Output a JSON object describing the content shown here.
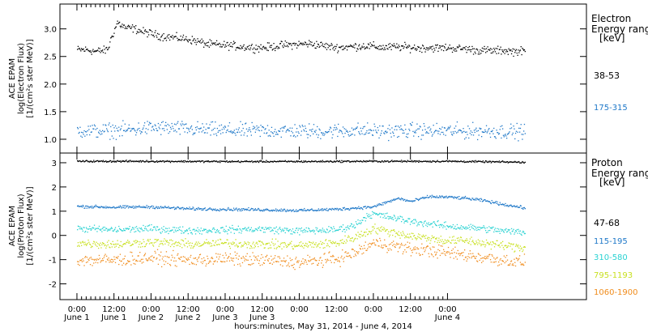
{
  "chart_data": [
    {
      "type": "scatter",
      "ylabel": [
        "ACE EPAM",
        "log(Electron Flux)",
        "[1/(cm²s ster MeV)]"
      ],
      "ylim": [
        0.75,
        3.45
      ],
      "yticks": [
        1.0,
        1.5,
        2.0,
        2.5,
        3.0
      ],
      "ytick_labels": [
        "1.0",
        "1.5",
        "2.0",
        "2.5",
        "3.0"
      ],
      "legend_title": [
        "Electron",
        "Energy ranges",
        "[keV]"
      ],
      "series": [
        {
          "name": "38-53",
          "color": "#000000",
          "x": [
            0,
            3,
            6,
            9,
            10,
            11,
            12,
            13,
            14,
            16,
            18,
            21,
            24,
            27,
            30,
            33,
            36,
            39,
            42,
            45,
            48,
            51,
            54,
            57,
            60,
            63,
            66,
            69,
            72,
            75,
            78,
            81,
            84,
            87,
            90,
            93,
            96,
            99,
            102,
            105,
            108,
            111,
            114,
            117,
            120,
            123,
            126,
            129,
            132,
            135,
            138,
            141,
            144,
            145
          ],
          "y": [
            2.63,
            2.63,
            2.6,
            2.62,
            2.65,
            2.85,
            2.98,
            3.13,
            3.08,
            3.02,
            3.02,
            2.96,
            2.92,
            2.88,
            2.86,
            2.84,
            2.82,
            2.78,
            2.73,
            2.72,
            2.71,
            2.7,
            2.68,
            2.67,
            2.67,
            2.68,
            2.71,
            2.72,
            2.73,
            2.74,
            2.72,
            2.69,
            2.67,
            2.68,
            2.69,
            2.7,
            2.69,
            2.67,
            2.68,
            2.68,
            2.67,
            2.66,
            2.67,
            2.66,
            2.67,
            2.65,
            2.65,
            2.62,
            2.62,
            2.61,
            2.62,
            2.6,
            2.61,
            2.6
          ],
          "spread": 0.06
        },
        {
          "name": "175-315",
          "color": "#1f78c8",
          "x": [
            0,
            6,
            12,
            18,
            24,
            30,
            36,
            42,
            48,
            54,
            60,
            66,
            72,
            78,
            84,
            90,
            96,
            102,
            108,
            114,
            120,
            126,
            132,
            138,
            145
          ],
          "y": [
            1.17,
            1.16,
            1.17,
            1.18,
            1.22,
            1.21,
            1.19,
            1.18,
            1.17,
            1.16,
            1.17,
            1.16,
            1.16,
            1.15,
            1.16,
            1.17,
            1.16,
            1.15,
            1.17,
            1.16,
            1.16,
            1.15,
            1.16,
            1.15,
            1.15
          ],
          "spread": 0.11
        }
      ]
    },
    {
      "type": "scatter",
      "ylabel": [
        "ACE EPAM",
        "log(Proton Flux)",
        "[1/(cm²s ster MeV)]"
      ],
      "ylim": [
        -2.65,
        3.4
      ],
      "yticks": [
        -2,
        -1,
        0,
        1,
        2,
        3
      ],
      "ytick_labels": [
        "-2",
        "-1",
        "0",
        "1",
        "2",
        "3"
      ],
      "legend_title": [
        "Proton",
        "Energy ranges",
        "[keV]"
      ],
      "series": [
        {
          "name": "47-68",
          "color": "#000000",
          "x": [
            0,
            24,
            48,
            72,
            96,
            120,
            145
          ],
          "y": [
            3.08,
            3.08,
            3.07,
            3.07,
            3.08,
            3.08,
            3.04
          ],
          "spread": 0.03
        },
        {
          "name": "115-195",
          "color": "#1f78c8",
          "x": [
            0,
            12,
            24,
            36,
            48,
            60,
            72,
            84,
            90,
            96,
            100,
            104,
            108,
            114,
            120,
            126,
            132,
            138,
            145
          ],
          "y": [
            1.22,
            1.18,
            1.2,
            1.12,
            1.1,
            1.08,
            1.05,
            1.1,
            1.15,
            1.2,
            1.38,
            1.55,
            1.42,
            1.62,
            1.6,
            1.55,
            1.45,
            1.3,
            1.15
          ],
          "spread": 0.05
        },
        {
          "name": "310-580",
          "color": "#2ad2d2",
          "x": [
            0,
            12,
            24,
            36,
            48,
            60,
            72,
            84,
            90,
            94,
            96,
            100,
            104,
            108,
            114,
            120,
            126,
            132,
            138,
            145
          ],
          "y": [
            0.3,
            0.25,
            0.3,
            0.22,
            0.25,
            0.28,
            0.2,
            0.25,
            0.45,
            0.85,
            0.9,
            0.8,
            0.7,
            0.6,
            0.5,
            0.4,
            0.35,
            0.3,
            0.2,
            0.15
          ],
          "spread": 0.12
        },
        {
          "name": "795-1193",
          "color": "#c8e020",
          "x": [
            0,
            12,
            24,
            36,
            48,
            60,
            72,
            84,
            90,
            96,
            100,
            104,
            108,
            114,
            120,
            126,
            132,
            138,
            145
          ],
          "y": [
            -0.3,
            -0.35,
            -0.25,
            -0.35,
            -0.3,
            -0.35,
            -0.4,
            -0.3,
            -0.05,
            0.3,
            0.2,
            0.1,
            0.0,
            -0.1,
            -0.2,
            -0.2,
            -0.3,
            -0.4,
            -0.5
          ],
          "spread": 0.15
        },
        {
          "name": "1060-1900",
          "color": "#f08c1c",
          "x": [
            0,
            12,
            24,
            36,
            48,
            60,
            72,
            84,
            90,
            96,
            100,
            104,
            108,
            114,
            120,
            126,
            132,
            138,
            145
          ],
          "y": [
            -1.0,
            -1.0,
            -0.9,
            -1.0,
            -0.95,
            -1.0,
            -1.1,
            -0.95,
            -0.7,
            -0.3,
            -0.35,
            -0.45,
            -0.55,
            -0.6,
            -0.7,
            -0.8,
            -0.9,
            -1.0,
            -1.1
          ],
          "spread": 0.22
        }
      ]
    }
  ],
  "x_axis": {
    "range_hours": [
      -5.5,
      165
    ],
    "ticks_hours": [
      0,
      12,
      24,
      36,
      48,
      60,
      72,
      84,
      96,
      108,
      120
    ],
    "tick_labels": [
      "0:00",
      "12:00",
      "0:00",
      "12:00",
      "0:00",
      "12:00",
      "0:00",
      "12:00",
      "0:00",
      "12:00",
      "0:00"
    ],
    "tick_sublabels": [
      "June 1",
      "June 1",
      "June 2",
      "June 2",
      "June 3",
      "June 3",
      "June 4"
    ],
    "xlabel": "hours:minutes, May 31, 2014 - June  4, 2014"
  }
}
